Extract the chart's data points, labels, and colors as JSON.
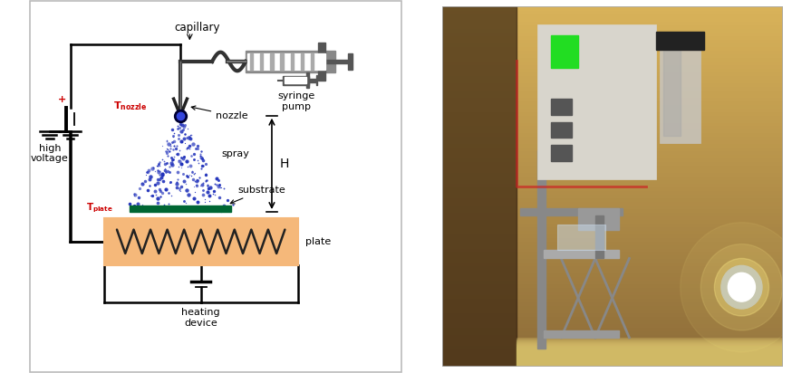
{
  "bg_color": "#ffffff",
  "fig_width": 8.74,
  "fig_height": 4.12,
  "dpi": 100,
  "labels": {
    "capillary": "capillary",
    "syringe_pump": "syringe\npump",
    "nozzle": "nozzle",
    "spray": "spray",
    "substrate": "substrate",
    "plate": "plate",
    "high_voltage": "high\nvoltage",
    "heating_device": "heating\ndevice",
    "H": "H"
  },
  "colors": {
    "black": "#000000",
    "blue_spray": "#2233bb",
    "red": "#cc0000",
    "green_sub": "#006633",
    "orange_plate": "#f5b87a",
    "dark": "#111111",
    "wire": "#1a1a1a"
  }
}
